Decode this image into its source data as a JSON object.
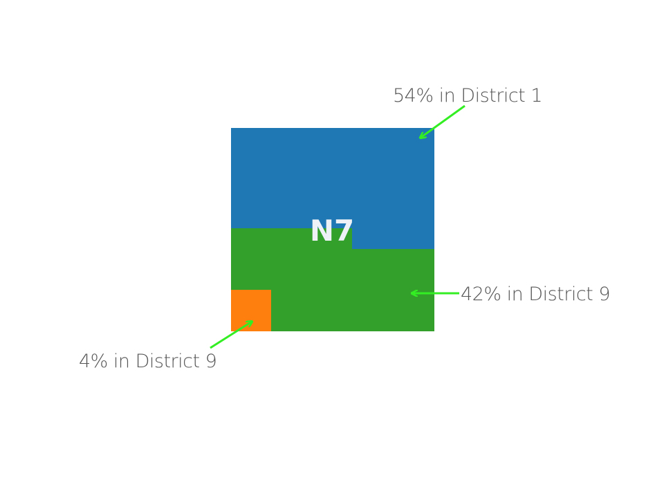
{
  "area": {
    "label": "N7"
  },
  "segments": [
    {
      "id": "district-1",
      "share": 0.54,
      "color": "#1f77b4",
      "annotation": "54% in District 1"
    },
    {
      "id": "district-9-major",
      "share": 0.42,
      "color": "#33a02c",
      "annotation": "42% in District 9"
    },
    {
      "id": "district-9-minor",
      "share": 0.04,
      "color": "#ff7f0e",
      "annotation": "4% in District 9"
    }
  ],
  "arrow_color": "#33ee22"
}
